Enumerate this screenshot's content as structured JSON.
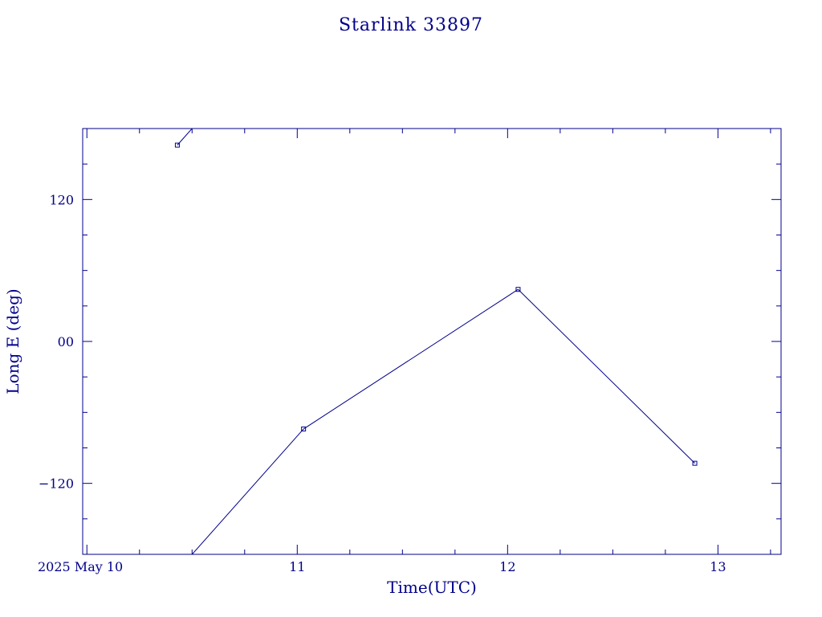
{
  "chart_data": {
    "type": "line",
    "title": "Starlink 33897",
    "xlabel": "Time(UTC)",
    "ylabel": "Long E (deg)",
    "x_unit": "days (May 2025, UTC)",
    "xlim": [
      9.98,
      13.3
    ],
    "ylim": [
      -180,
      180
    ],
    "x_tick_labels": [
      "2025 May 10",
      "11",
      "12",
      "13"
    ],
    "x_major_ticks": [
      10,
      11,
      12,
      13
    ],
    "x_minor_step": 0.25,
    "y_tick_labels": [
      "120",
      "00",
      "−120"
    ],
    "y_major_ticks": [
      120,
      0,
      -120
    ],
    "y_minor_step": 30,
    "series": [
      {
        "points": [
          {
            "x": 10.43,
            "y": 166
          },
          {
            "x": 11.03,
            "y": -74
          },
          {
            "x": 12.05,
            "y": 44
          },
          {
            "x": 12.89,
            "y": -103
          }
        ]
      }
    ],
    "wrap": {
      "period": 360
    },
    "color": "#00008b"
  }
}
